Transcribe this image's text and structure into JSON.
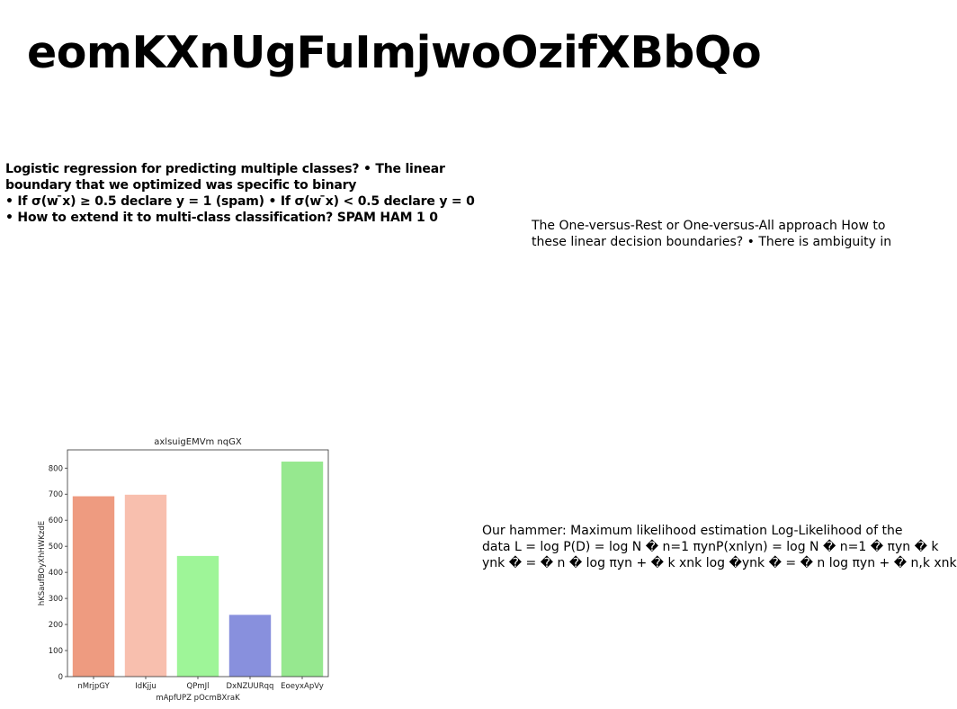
{
  "title": "eomKXnUgFuImjwoOzifXBbQo",
  "left_block": {
    "lines": [
      "Logistic regression for predicting multiple classes? • The linear",
      "boundary that we optimized was specific to binary",
      "• If σ(w ̄x) ≥ 0.5 declare y = 1 (spam) • If σ(w ̄x) < 0.5 declare y = 0",
      "• How to extend it to multi-class classification? SPAM HAM 1 0"
    ]
  },
  "right_block": {
    "lines": [
      "The One-versus-Rest or One-versus-All approach How to",
      "these linear decision boundaries? • There is ambiguity in"
    ]
  },
  "bottom_block": {
    "lines": [
      "Our hammer: Maximum likelihood estimation Log-Likelihood of the",
      "data L = log P(D) = log N � n=1 πynP(xnlyn) = log N � n=1 � πyn � k",
      "ynk � = � n � log πyn + � k xnk log �ynk � = � n log πyn + � n,k xnk"
    ]
  },
  "chart_data": {
    "type": "bar",
    "title": "axlsuigEMVm nqGX",
    "xlabel": "mApfUPZ pOcmBXraK",
    "ylabel": "hKSaufBOyXhHWKzdE",
    "categories": [
      "nMrjpGY",
      "IdKjju",
      "QPmJl",
      "DxNZUURqq",
      "EoeyxApVy"
    ],
    "values": [
      692,
      698,
      463,
      237,
      825
    ],
    "colors": [
      "#ee9b80",
      "#f8bfae",
      "#9ef598",
      "#8890dd",
      "#96e88f"
    ],
    "ylim": [
      0,
      870
    ],
    "yticks": [
      0,
      100,
      200,
      300,
      400,
      500,
      600,
      700,
      800
    ],
    "grid": false,
    "legend": "none"
  }
}
